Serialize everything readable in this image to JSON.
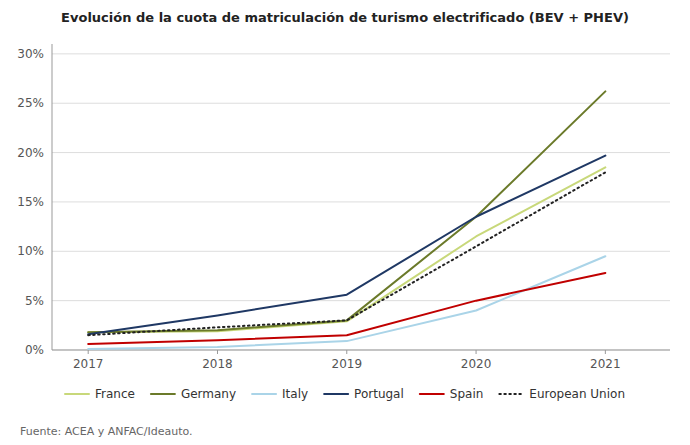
{
  "chart_data": {
    "type": "line",
    "title": "Evolución de la cuota de matriculación de turismo electrificado (BEV + PHEV)",
    "annotations": [
      "Fuente: ACEA y ANFAC/Ideauto."
    ],
    "x": [
      2017,
      2018,
      2019,
      2020,
      2021
    ],
    "series": [
      {
        "name": "France",
        "color": "#c8d87a",
        "line_style": "solid",
        "values": [
          0.018,
          0.019,
          0.029,
          0.115,
          0.185
        ]
      },
      {
        "name": "Germany",
        "color": "#6b7a2a",
        "line_style": "solid",
        "values": [
          0.018,
          0.02,
          0.03,
          0.135,
          0.262
        ]
      },
      {
        "name": "Italy",
        "color": "#aad4e8",
        "line_style": "solid",
        "values": [
          0.001,
          0.003,
          0.009,
          0.04,
          0.095
        ]
      },
      {
        "name": "Portugal",
        "color": "#1f3864",
        "line_style": "solid",
        "values": [
          0.016,
          0.035,
          0.056,
          0.135,
          0.197
        ]
      },
      {
        "name": "Spain",
        "color": "#c00000",
        "line_style": "solid",
        "values": [
          0.006,
          0.01,
          0.015,
          0.05,
          0.078
        ]
      },
      {
        "name": "European Union",
        "color": "#222222",
        "line_style": "dotted",
        "values": [
          0.015,
          0.023,
          0.03,
          0.105,
          0.18
        ]
      }
    ],
    "xlim": [
      2016.72,
      2021.5
    ],
    "xticks": [
      2017,
      2018,
      2019,
      2020,
      2021
    ],
    "ylim": [
      0,
      0.31
    ],
    "yticks": [
      {
        "value": 0.0,
        "label": "0%"
      },
      {
        "value": 0.05,
        "label": "5%"
      },
      {
        "value": 0.1,
        "label": "10%"
      },
      {
        "value": 0.15,
        "label": "15%"
      },
      {
        "value": 0.2,
        "label": "20%"
      },
      {
        "value": 0.25,
        "label": "25%"
      },
      {
        "value": 0.3,
        "label": "30%"
      }
    ],
    "grid": "y",
    "legend": "bottom"
  }
}
